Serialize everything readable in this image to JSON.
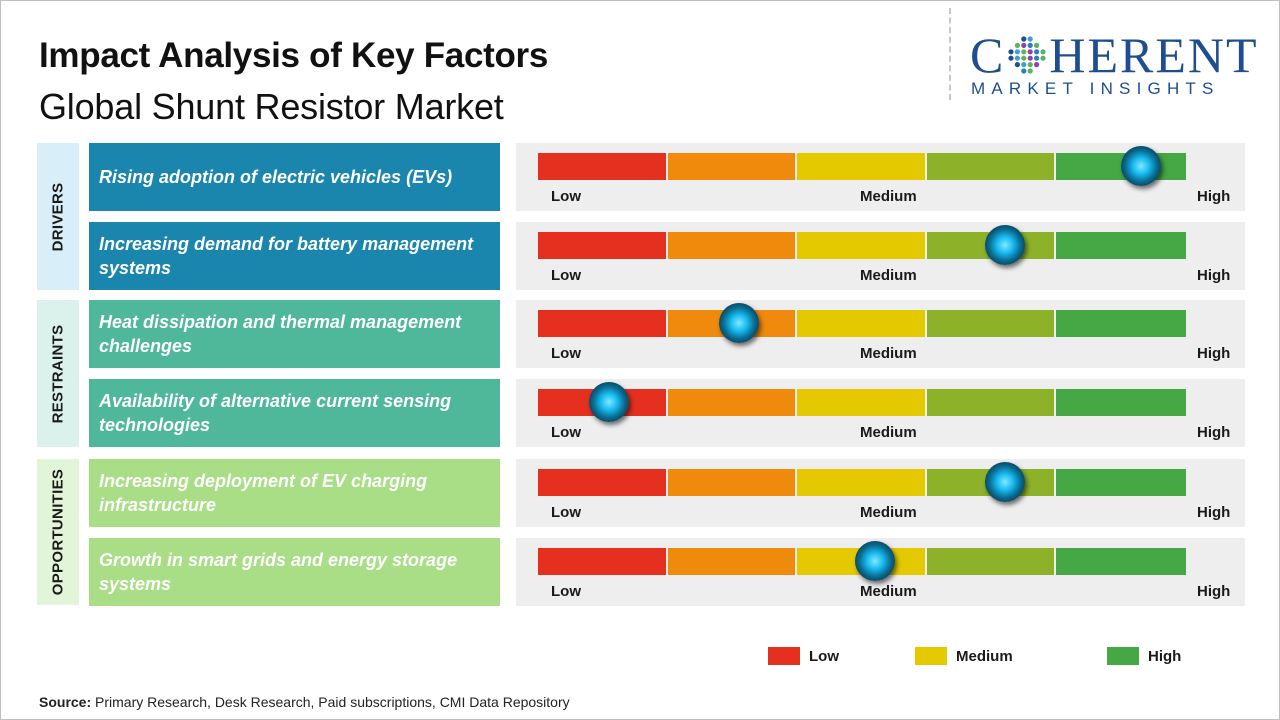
{
  "title": "Impact Analysis of Key Factors",
  "subtitle": "Global Shunt Resistor Market",
  "logo": {
    "name": "COHERENT",
    "tagline": "MARKET INSIGHTS"
  },
  "colors": {
    "scale": [
      "#e53020",
      "#ef8a0c",
      "#e4c900",
      "#8db22a",
      "#45a844"
    ],
    "drivers_cat": "#d8eef8",
    "drivers_box": "#1a85ad",
    "restraints_cat": "#daf1ec",
    "restraints_box": "#4fb79a",
    "opportunities_cat": "#e3f5d8",
    "opportunities_box": "#a9dd86"
  },
  "chart_data": {
    "type": "table",
    "scale_labels": [
      "Low",
      "Medium",
      "High"
    ],
    "categories": [
      {
        "name": "DRIVERS",
        "factors": [
          {
            "text": "Rising adoption of electric vehicles (EVs)",
            "impact": 0.93
          },
          {
            "text": "Increasing demand for battery management systems",
            "impact": 0.72
          }
        ]
      },
      {
        "name": "RESTRAINTS",
        "factors": [
          {
            "text": "Heat dissipation and thermal management challenges",
            "impact": 0.31
          },
          {
            "text": "Availability of alternative current sensing technologies",
            "impact": 0.11
          }
        ]
      },
      {
        "name": "OPPORTUNITIES",
        "factors": [
          {
            "text": "Increasing deployment of EV charging infrastructure",
            "impact": 0.72
          },
          {
            "text": "Growth in smart grids and energy storage systems",
            "impact": 0.52
          }
        ]
      }
    ],
    "legend": [
      {
        "label": "Low",
        "color": "#e53020"
      },
      {
        "label": "Medium",
        "color": "#e4c900"
      },
      {
        "label": "High",
        "color": "#45a844"
      }
    ]
  },
  "source": {
    "prefix": "Source:",
    "text": " Primary Research, Desk Research, Paid subscriptions, CMI Data Repository"
  }
}
